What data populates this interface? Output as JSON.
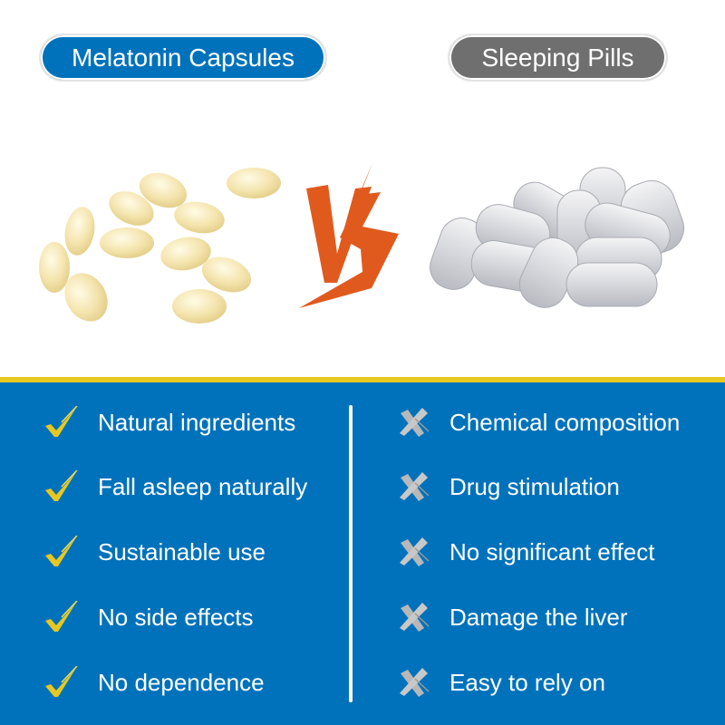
{
  "colors": {
    "blue": "#0072bb",
    "gray": "#6f6f6f",
    "yellow": "#e8c81f",
    "vs_orange": "#e05a1e",
    "cross_gray": "#b8b8b8"
  },
  "header": {
    "left_label": "Melatonin Capsules",
    "right_label": "Sleeping Pills",
    "vs_text": "VS"
  },
  "left_items": [
    {
      "icon": "check-icon",
      "text": "Natural ingredients"
    },
    {
      "icon": "check-icon",
      "text": "Fall asleep naturally"
    },
    {
      "icon": "check-icon",
      "text": "Sustainable use"
    },
    {
      "icon": "check-icon",
      "text": "No side effects"
    },
    {
      "icon": "check-icon",
      "text": "No dependence"
    }
  ],
  "right_items": [
    {
      "icon": "cross-icon",
      "text": "Chemical composition"
    },
    {
      "icon": "cross-icon",
      "text": "Drug stimulation"
    },
    {
      "icon": "cross-icon",
      "text": "No significant effect"
    },
    {
      "icon": "cross-icon",
      "text": "Damage the liver"
    },
    {
      "icon": "cross-icon",
      "text": "Easy to rely on"
    }
  ]
}
